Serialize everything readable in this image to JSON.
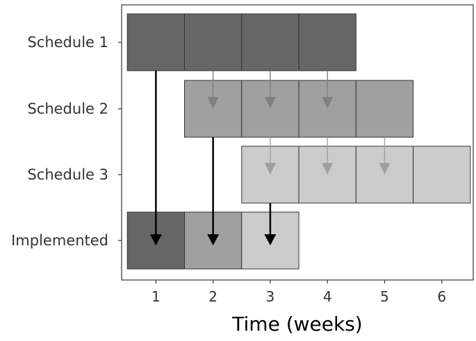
{
  "chart_data": {
    "type": "gantt",
    "title": "",
    "xlabel": "Time (weeks)",
    "ylabel": "",
    "x_ticks": [
      1,
      2,
      3,
      4,
      5,
      6
    ],
    "xlim": [
      0.4,
      6.55
    ],
    "categories": [
      "Schedule 1",
      "Schedule 2",
      "Schedule 3",
      "Implemented"
    ],
    "series": [
      {
        "category": "Schedule 1",
        "weeks": [
          1,
          2,
          3,
          4
        ],
        "color": "#666666"
      },
      {
        "category": "Schedule 2",
        "weeks": [
          2,
          3,
          4,
          5
        ],
        "color": "#a0a0a0"
      },
      {
        "category": "Schedule 3",
        "weeks": [
          3,
          4,
          5,
          6
        ],
        "color": "#cccccc"
      },
      {
        "category": "Implemented",
        "weeks": [
          1,
          2,
          3
        ],
        "colors": [
          "#666666",
          "#a0a0a0",
          "#cccccc"
        ]
      }
    ],
    "arrows": [
      {
        "week": 1,
        "from": "Schedule 1",
        "to": "Implemented",
        "color": "#000000"
      },
      {
        "week": 2,
        "from": "Schedule 2",
        "to": "Implemented",
        "color": "#000000"
      },
      {
        "week": 3,
        "from": "Schedule 3",
        "to": "Implemented",
        "color": "#000000"
      },
      {
        "week": 2,
        "from": "Schedule 1",
        "to": "Schedule 2",
        "color": "#808080"
      },
      {
        "week": 3,
        "from": "Schedule 1",
        "to": "Schedule 2",
        "color": "#808080"
      },
      {
        "week": 4,
        "from": "Schedule 1",
        "to": "Schedule 2",
        "color": "#808080"
      },
      {
        "week": 3,
        "from": "Schedule 2",
        "to": "Schedule 3",
        "color": "#a0a0a0"
      },
      {
        "week": 4,
        "from": "Schedule 2",
        "to": "Schedule 3",
        "color": "#a0a0a0"
      },
      {
        "week": 5,
        "from": "Schedule 2",
        "to": "Schedule 3",
        "color": "#a0a0a0"
      }
    ],
    "grid": false,
    "legend": "none"
  }
}
